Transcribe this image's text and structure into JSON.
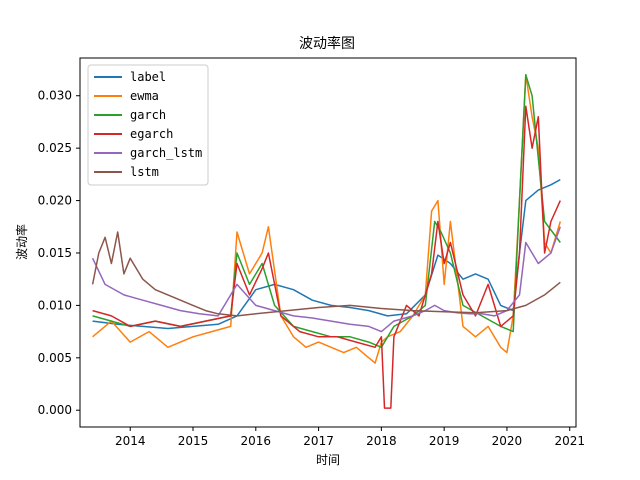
{
  "chart_data": {
    "type": "line",
    "title": "波动率图",
    "xlabel": "时间",
    "ylabel": "波动率",
    "xlim": [
      2013.2,
      2021.1
    ],
    "ylim": [
      -0.0016,
      0.0336
    ],
    "x_ticks": [
      2014,
      2015,
      2016,
      2017,
      2018,
      2019,
      2020,
      2021
    ],
    "y_ticks": [
      "0.000",
      "0.005",
      "0.010",
      "0.015",
      "0.020",
      "0.025",
      "0.030"
    ],
    "y_tick_values": [
      0.0,
      0.005,
      0.01,
      0.015,
      0.02,
      0.025,
      0.03
    ],
    "grid": false,
    "legend_position": "top-left",
    "series": [
      {
        "name": "label",
        "color": "#1f77b4",
        "x": [
          2013.4,
          2013.8,
          2014.2,
          2014.6,
          2015.0,
          2015.4,
          2015.7,
          2016.0,
          2016.3,
          2016.6,
          2016.9,
          2017.2,
          2017.5,
          2017.8,
          2018.1,
          2018.4,
          2018.7,
          2018.9,
          2019.1,
          2019.3,
          2019.5,
          2019.7,
          2019.9,
          2020.1,
          2020.2,
          2020.3,
          2020.5,
          2020.7,
          2020.85
        ],
        "values": [
          0.0085,
          0.0082,
          0.008,
          0.0078,
          0.008,
          0.0082,
          0.009,
          0.0115,
          0.012,
          0.0115,
          0.0105,
          0.01,
          0.0098,
          0.0095,
          0.009,
          0.0092,
          0.011,
          0.0148,
          0.014,
          0.0125,
          0.013,
          0.0125,
          0.01,
          0.0095,
          0.015,
          0.02,
          0.021,
          0.0215,
          0.022
        ]
      },
      {
        "name": "ewma",
        "color": "#ff7f0e",
        "x": [
          2013.4,
          2013.7,
          2014.0,
          2014.3,
          2014.6,
          2015.0,
          2015.3,
          2015.6,
          2015.7,
          2015.9,
          2016.1,
          2016.2,
          2016.4,
          2016.6,
          2016.8,
          2017.0,
          2017.2,
          2017.4,
          2017.6,
          2017.8,
          2017.9,
          2018.0,
          2018.1,
          2018.3,
          2018.5,
          2018.7,
          2018.8,
          2018.9,
          2019.0,
          2019.1,
          2019.3,
          2019.5,
          2019.7,
          2019.9,
          2020.0,
          2020.1,
          2020.2,
          2020.3,
          2020.4,
          2020.5,
          2020.6,
          2020.7,
          2020.85
        ],
        "values": [
          0.007,
          0.0085,
          0.0065,
          0.0075,
          0.006,
          0.007,
          0.0075,
          0.008,
          0.017,
          0.013,
          0.015,
          0.0175,
          0.009,
          0.007,
          0.006,
          0.0065,
          0.006,
          0.0055,
          0.006,
          0.005,
          0.0045,
          0.0065,
          0.007,
          0.0075,
          0.009,
          0.011,
          0.019,
          0.02,
          0.012,
          0.018,
          0.008,
          0.007,
          0.008,
          0.006,
          0.0055,
          0.009,
          0.02,
          0.032,
          0.028,
          0.025,
          0.016,
          0.015,
          0.018
        ]
      },
      {
        "name": "garch",
        "color": "#2ca02c",
        "x": [
          2013.4,
          2013.7,
          2014.0,
          2014.4,
          2014.8,
          2015.2,
          2015.6,
          2015.7,
          2015.9,
          2016.1,
          2016.3,
          2016.6,
          2016.9,
          2017.2,
          2017.5,
          2017.8,
          2018.0,
          2018.2,
          2018.5,
          2018.7,
          2018.85,
          2018.95,
          2019.1,
          2019.3,
          2019.6,
          2019.9,
          2020.1,
          2020.2,
          2020.3,
          2020.4,
          2020.6,
          2020.85
        ],
        "values": [
          0.009,
          0.0085,
          0.008,
          0.0085,
          0.008,
          0.0085,
          0.009,
          0.015,
          0.012,
          0.014,
          0.01,
          0.008,
          0.0075,
          0.007,
          0.007,
          0.0065,
          0.006,
          0.008,
          0.009,
          0.01,
          0.018,
          0.017,
          0.015,
          0.01,
          0.009,
          0.008,
          0.0075,
          0.02,
          0.032,
          0.03,
          0.018,
          0.016
        ]
      },
      {
        "name": "egarch",
        "color": "#d62728",
        "x": [
          2013.4,
          2013.7,
          2014.0,
          2014.4,
          2014.8,
          2015.2,
          2015.6,
          2015.7,
          2015.9,
          2016.1,
          2016.2,
          2016.4,
          2016.7,
          2017.0,
          2017.3,
          2017.6,
          2017.9,
          2018.0,
          2018.05,
          2018.15,
          2018.2,
          2018.4,
          2018.6,
          2018.8,
          2018.9,
          2019.0,
          2019.1,
          2019.3,
          2019.5,
          2019.7,
          2019.9,
          2020.1,
          2020.2,
          2020.3,
          2020.4,
          2020.5,
          2020.6,
          2020.7,
          2020.85
        ],
        "values": [
          0.0095,
          0.009,
          0.008,
          0.0085,
          0.008,
          0.0085,
          0.009,
          0.014,
          0.011,
          0.0135,
          0.015,
          0.009,
          0.0075,
          0.007,
          0.007,
          0.0065,
          0.006,
          0.007,
          0.0002,
          0.0002,
          0.007,
          0.01,
          0.009,
          0.013,
          0.018,
          0.014,
          0.016,
          0.011,
          0.009,
          0.012,
          0.008,
          0.009,
          0.015,
          0.029,
          0.025,
          0.028,
          0.015,
          0.018,
          0.02
        ]
      },
      {
        "name": "garch_lstm",
        "color": "#9467bd",
        "x": [
          2013.4,
          2013.6,
          2013.9,
          2014.2,
          2014.5,
          2014.8,
          2015.1,
          2015.4,
          2015.7,
          2016.0,
          2016.3,
          2016.6,
          2016.9,
          2017.2,
          2017.5,
          2017.8,
          2018.0,
          2018.2,
          2018.5,
          2018.7,
          2018.85,
          2019.0,
          2019.2,
          2019.4,
          2019.6,
          2019.8,
          2020.0,
          2020.2,
          2020.3,
          2020.5,
          2020.7,
          2020.85
        ],
        "values": [
          0.0145,
          0.012,
          0.011,
          0.0105,
          0.01,
          0.0095,
          0.0092,
          0.009,
          0.012,
          0.01,
          0.0095,
          0.009,
          0.0088,
          0.0085,
          0.0082,
          0.008,
          0.0075,
          0.0085,
          0.009,
          0.0095,
          0.01,
          0.0095,
          0.0093,
          0.0092,
          0.0092,
          0.009,
          0.0095,
          0.011,
          0.016,
          0.014,
          0.015,
          0.0175
        ]
      },
      {
        "name": "lstm",
        "color": "#8c564b",
        "x": [
          2013.4,
          2013.5,
          2013.6,
          2013.7,
          2013.8,
          2013.9,
          2014.0,
          2014.2,
          2014.4,
          2014.6,
          2014.8,
          2015.0,
          2015.2,
          2015.4,
          2015.7,
          2016.0,
          2016.5,
          2017.0,
          2017.5,
          2018.0,
          2018.5,
          2019.0,
          2019.5,
          2020.0,
          2020.3,
          2020.6,
          2020.85
        ],
        "values": [
          0.012,
          0.015,
          0.0165,
          0.014,
          0.017,
          0.013,
          0.0145,
          0.0125,
          0.0115,
          0.011,
          0.0105,
          0.01,
          0.0095,
          0.0092,
          0.009,
          0.0092,
          0.0095,
          0.0098,
          0.01,
          0.0097,
          0.0095,
          0.0094,
          0.0093,
          0.0095,
          0.01,
          0.011,
          0.0122
        ]
      }
    ]
  }
}
